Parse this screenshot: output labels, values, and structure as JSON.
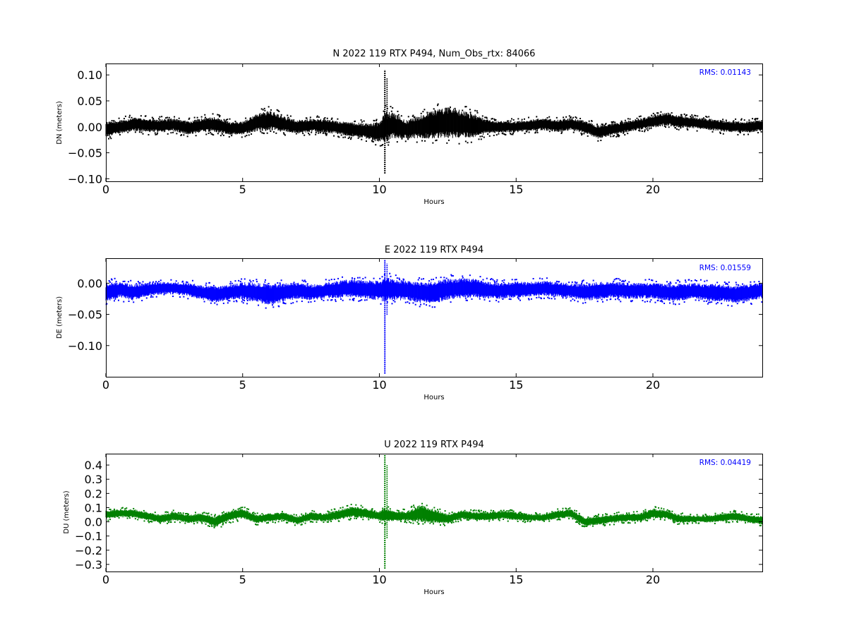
{
  "chart_data": [
    {
      "type": "scatter",
      "title": "N 2022 119 RTX  P494, Num_Obs_rtx: 84066",
      "xlabel": "Hours",
      "ylabel": "DN (meters)",
      "xlim": [
        0,
        24
      ],
      "ylim": [
        -0.105,
        0.122
      ],
      "xticks": [
        0,
        5,
        10,
        15,
        20
      ],
      "xtick_labels": [
        "0",
        "5",
        "10",
        "15",
        "20"
      ],
      "yticks": [
        0.1,
        0.05,
        0.0,
        -0.05,
        -0.1
      ],
      "ytick_labels": [
        "0.10",
        "0.05",
        "0.00",
        "−0.05",
        "−0.10"
      ],
      "annotation": "RMS:  0.01143",
      "color": "#000000",
      "grid": false,
      "series": [
        {
          "x": [
            0,
            0.5,
            1,
            1.5,
            2,
            2.5,
            3,
            3.5,
            4,
            4.5,
            5,
            5.5,
            6,
            6.5,
            7,
            7.5,
            8,
            8.5,
            9,
            9.5,
            10,
            10.2,
            10.5,
            11,
            11.5,
            12,
            12.5,
            13,
            13.5,
            14,
            14.5,
            15,
            15.5,
            16,
            16.5,
            17,
            17.5,
            18,
            18.5,
            19,
            19.5,
            20,
            20.5,
            21,
            21.5,
            22,
            22.5,
            23,
            23.5,
            24
          ],
          "center": [
            -0.005,
            0.0,
            0.005,
            0.003,
            0.002,
            0.004,
            -0.002,
            0.003,
            0.005,
            -0.003,
            -0.002,
            0.008,
            0.012,
            0.005,
            0.0,
            0.003,
            0.002,
            -0.002,
            -0.005,
            -0.008,
            -0.01,
            0.0,
            0.003,
            -0.005,
            0.0,
            0.005,
            0.008,
            0.005,
            0.002,
            0.0,
            0.0,
            0.0,
            0.003,
            0.005,
            0.002,
            0.005,
            0.0,
            -0.01,
            -0.005,
            0.0,
            0.005,
            0.01,
            0.015,
            0.01,
            0.008,
            0.005,
            0.002,
            0.0,
            0.0,
            0.003
          ],
          "spread": [
            0.015,
            0.013,
            0.013,
            0.013,
            0.013,
            0.013,
            0.013,
            0.014,
            0.015,
            0.013,
            0.013,
            0.017,
            0.02,
            0.015,
            0.013,
            0.013,
            0.013,
            0.013,
            0.014,
            0.015,
            0.02,
            0.03,
            0.025,
            0.018,
            0.022,
            0.028,
            0.03,
            0.027,
            0.022,
            0.013,
            0.011,
            0.011,
            0.011,
            0.012,
            0.012,
            0.012,
            0.012,
            0.013,
            0.012,
            0.011,
            0.011,
            0.012,
            0.013,
            0.012,
            0.011,
            0.011,
            0.011,
            0.011,
            0.011,
            0.011
          ]
        }
      ],
      "spike": {
        "x": 10.2,
        "min": -0.09,
        "max": 0.11
      }
    },
    {
      "type": "scatter",
      "title": "E 2022 119 RTX  P494",
      "xlabel": "Hours",
      "ylabel": "DE (meters)",
      "xlim": [
        0,
        24
      ],
      "ylim": [
        -0.15,
        0.04
      ],
      "xticks": [
        0,
        5,
        10,
        15,
        20
      ],
      "xtick_labels": [
        "0",
        "5",
        "10",
        "15",
        "20"
      ],
      "yticks": [
        0.0,
        -0.05,
        -0.1
      ],
      "ytick_labels": [
        "0.00",
        "−0.05",
        "−0.10"
      ],
      "annotation": "RMS:  0.01559",
      "color": "#0000ff",
      "grid": false,
      "series": [
        {
          "x": [
            0,
            0.5,
            1,
            1.5,
            2,
            2.5,
            3,
            3.5,
            4,
            4.5,
            5,
            5.5,
            6,
            6.5,
            7,
            7.5,
            8,
            8.5,
            9,
            9.5,
            10,
            10.2,
            10.5,
            11,
            11.5,
            12,
            12.5,
            13,
            13.5,
            14,
            14.5,
            15,
            15.5,
            16,
            16.5,
            17,
            17.5,
            18,
            18.5,
            19,
            19.5,
            20,
            20.5,
            21,
            21.5,
            22,
            22.5,
            23,
            23.5,
            24
          ],
          "center": [
            -0.015,
            -0.01,
            -0.015,
            -0.01,
            -0.008,
            -0.008,
            -0.01,
            -0.015,
            -0.018,
            -0.015,
            -0.012,
            -0.015,
            -0.018,
            -0.015,
            -0.012,
            -0.015,
            -0.012,
            -0.01,
            -0.008,
            -0.01,
            -0.012,
            -0.01,
            -0.01,
            -0.012,
            -0.015,
            -0.015,
            -0.01,
            -0.008,
            -0.008,
            -0.012,
            -0.012,
            -0.01,
            -0.01,
            -0.008,
            -0.01,
            -0.012,
            -0.015,
            -0.012,
            -0.01,
            -0.012,
            -0.012,
            -0.012,
            -0.015,
            -0.015,
            -0.012,
            -0.015,
            -0.015,
            -0.018,
            -0.015,
            -0.012
          ],
          "spread": [
            0.015,
            0.013,
            0.013,
            0.011,
            0.01,
            0.01,
            0.011,
            0.012,
            0.013,
            0.012,
            0.014,
            0.016,
            0.017,
            0.015,
            0.013,
            0.013,
            0.013,
            0.014,
            0.015,
            0.015,
            0.016,
            0.02,
            0.017,
            0.016,
            0.017,
            0.018,
            0.017,
            0.016,
            0.015,
            0.014,
            0.013,
            0.013,
            0.012,
            0.012,
            0.012,
            0.012,
            0.014,
            0.014,
            0.013,
            0.013,
            0.013,
            0.013,
            0.014,
            0.014,
            0.013,
            0.014,
            0.014,
            0.014,
            0.014,
            0.013
          ]
        }
      ],
      "spike": {
        "x": 10.2,
        "min": -0.145,
        "max": 0.037
      }
    },
    {
      "type": "scatter",
      "title": "U 2022 119 RTX  P494",
      "xlabel": "Hours",
      "ylabel": "DU (meters)",
      "xlim": [
        0,
        24
      ],
      "ylim": [
        -0.35,
        0.48
      ],
      "xticks": [
        0,
        5,
        10,
        15,
        20
      ],
      "xtick_labels": [
        "0",
        "5",
        "10",
        "15",
        "20"
      ],
      "yticks": [
        0.4,
        0.3,
        0.2,
        0.1,
        0.0,
        -0.1,
        -0.2,
        -0.3
      ],
      "ytick_labels": [
        "0.4",
        "0.3",
        "0.2",
        "0.1",
        "0.0",
        "−0.1",
        "−0.2",
        "−0.3"
      ],
      "annotation": "RMS:  0.04419",
      "color": "#008000",
      "grid": false,
      "series": [
        {
          "x": [
            0,
            0.5,
            1,
            1.5,
            2,
            2.5,
            3,
            3.5,
            4,
            4.5,
            5,
            5.5,
            6,
            6.5,
            7,
            7.5,
            8,
            8.5,
            9,
            9.5,
            10,
            10.2,
            10.5,
            11,
            11.5,
            12,
            12.5,
            13,
            13.5,
            14,
            14.5,
            15,
            15.5,
            16,
            16.5,
            17,
            17.5,
            18,
            18.5,
            19,
            19.5,
            20,
            20.5,
            21,
            21.5,
            22,
            22.5,
            23,
            23.5,
            24
          ],
          "center": [
            0.05,
            0.06,
            0.06,
            0.04,
            0.02,
            0.04,
            0.02,
            0.03,
            0.0,
            0.04,
            0.06,
            0.02,
            0.03,
            0.04,
            0.01,
            0.04,
            0.03,
            0.05,
            0.07,
            0.06,
            0.04,
            0.05,
            0.04,
            0.04,
            0.06,
            0.04,
            0.02,
            0.05,
            0.04,
            0.04,
            0.05,
            0.04,
            0.03,
            0.03,
            0.05,
            0.06,
            0.0,
            0.01,
            0.02,
            0.03,
            0.03,
            0.06,
            0.05,
            0.02,
            0.02,
            0.02,
            0.03,
            0.04,
            0.02,
            0.01
          ],
          "spread": [
            0.03,
            0.03,
            0.03,
            0.03,
            0.03,
            0.03,
            0.03,
            0.03,
            0.04,
            0.035,
            0.035,
            0.03,
            0.03,
            0.03,
            0.03,
            0.03,
            0.03,
            0.035,
            0.04,
            0.035,
            0.035,
            0.05,
            0.035,
            0.035,
            0.06,
            0.05,
            0.035,
            0.03,
            0.03,
            0.03,
            0.03,
            0.03,
            0.025,
            0.025,
            0.03,
            0.03,
            0.03,
            0.03,
            0.03,
            0.03,
            0.03,
            0.035,
            0.03,
            0.03,
            0.025,
            0.025,
            0.03,
            0.03,
            0.03,
            0.03
          ]
        }
      ],
      "spike": {
        "x": 10.2,
        "min": -0.33,
        "max": 0.47
      }
    }
  ]
}
